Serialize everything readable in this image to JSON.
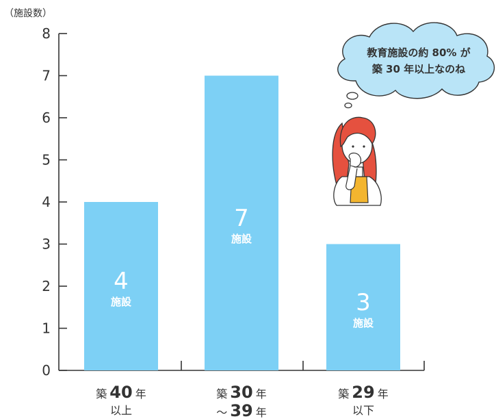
{
  "chart_data": {
    "type": "bar",
    "ylabel": "（施設数）",
    "ylim": [
      0,
      8
    ],
    "yticks": [
      "0",
      "1",
      "2",
      "3",
      "4",
      "5",
      "6",
      "7",
      "8"
    ],
    "categories": [
      {
        "prefix": "築",
        "number": "40",
        "suffix": "年",
        "line2": "以上"
      },
      {
        "prefix": "築",
        "number": "30",
        "suffix": "年",
        "line2_prefix": "～",
        "line2_number": "39",
        "line2_suffix": "年"
      },
      {
        "prefix": "築",
        "number": "29",
        "suffix": "年",
        "line2": "以下"
      }
    ],
    "values": [
      4,
      7,
      3
    ],
    "value_labels": [
      "4",
      "7",
      "3"
    ],
    "value_unit": "施設",
    "bar_color": "#7dd0f5",
    "grid": false
  },
  "callout": {
    "line1": "教育施設の約 80% が",
    "line2": "築 30 年以上なのね",
    "bubble_color": "#b9e4f7"
  }
}
